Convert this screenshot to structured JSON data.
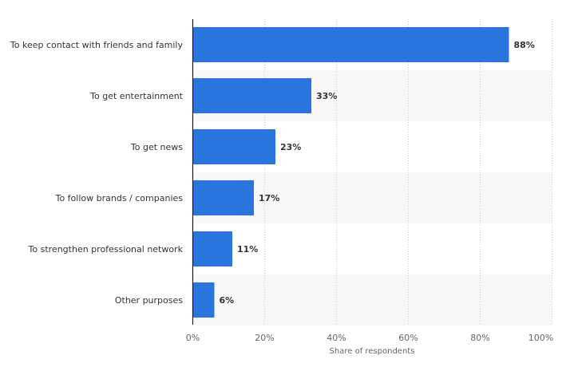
{
  "chart_data": {
    "type": "bar",
    "orientation": "horizontal",
    "categories": [
      "To keep contact with friends and family",
      "To get entertainment",
      "To get news",
      "To follow brands / companies",
      "To strengthen professional network",
      "Other purposes"
    ],
    "values": [
      88,
      33,
      23,
      17,
      11,
      6
    ],
    "data_labels": [
      "88%",
      "33%",
      "23%",
      "17%",
      "11%",
      "6%"
    ],
    "xlabel": "Share of respondents",
    "ylabel": "",
    "xlim": [
      0,
      100
    ],
    "x_ticks": [
      "0%",
      "20%",
      "40%",
      "60%",
      "80%",
      "100%"
    ],
    "grid": "vertical dotted",
    "bar_color": "#2876dd",
    "alt_row_color": "#f8f8f8"
  }
}
